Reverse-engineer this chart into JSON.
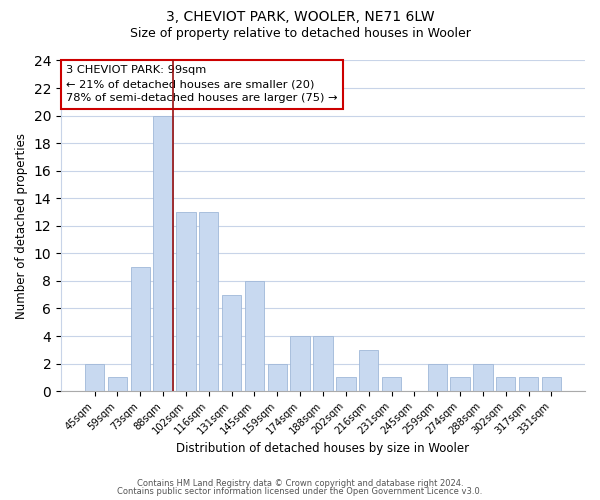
{
  "title": "3, CHEVIOT PARK, WOOLER, NE71 6LW",
  "subtitle": "Size of property relative to detached houses in Wooler",
  "xlabel": "Distribution of detached houses by size in Wooler",
  "ylabel": "Number of detached properties",
  "categories": [
    "45sqm",
    "59sqm",
    "73sqm",
    "88sqm",
    "102sqm",
    "116sqm",
    "131sqm",
    "145sqm",
    "159sqm",
    "174sqm",
    "188sqm",
    "202sqm",
    "216sqm",
    "231sqm",
    "245sqm",
    "259sqm",
    "274sqm",
    "288sqm",
    "302sqm",
    "317sqm",
    "331sqm"
  ],
  "values": [
    2,
    1,
    9,
    20,
    13,
    13,
    7,
    8,
    2,
    4,
    4,
    1,
    3,
    1,
    0,
    2,
    1,
    2,
    1,
    1,
    1
  ],
  "bar_color": "#c8d9f0",
  "bar_edge_color": "#a0b8d8",
  "highlight_line_color": "#991111",
  "annotation_line1": "3 CHEVIOT PARK: 99sqm",
  "annotation_line2": "← 21% of detached houses are smaller (20)",
  "annotation_line3": "78% of semi-detached houses are larger (75) →",
  "annotation_box_color": "#ffffff",
  "annotation_box_edge": "#cc0000",
  "ylim": [
    0,
    24
  ],
  "yticks": [
    0,
    2,
    4,
    6,
    8,
    10,
    12,
    14,
    16,
    18,
    20,
    22,
    24
  ],
  "footer1": "Contains HM Land Registry data © Crown copyright and database right 2024.",
  "footer2": "Contains public sector information licensed under the Open Government Licence v3.0.",
  "background_color": "#ffffff",
  "grid_color": "#c8d4e8",
  "title_fontsize": 10,
  "subtitle_fontsize": 9
}
